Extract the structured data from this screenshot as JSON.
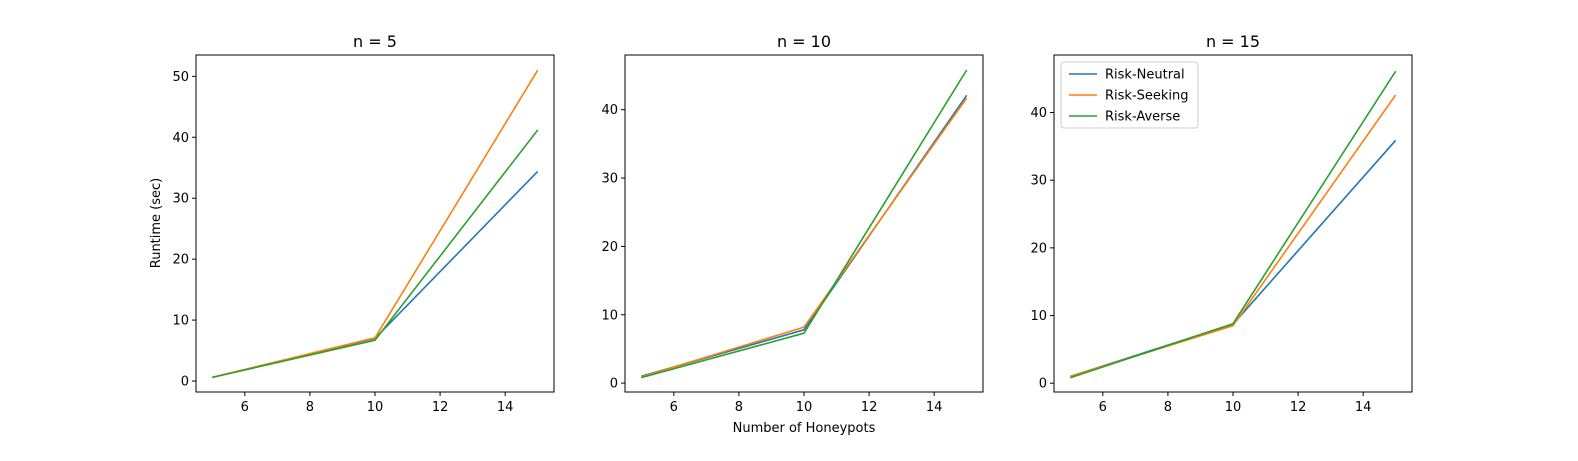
{
  "figure": {
    "xlabel": "Number of Honeypots",
    "ylabel": "Runtime (sec)"
  },
  "legend": {
    "placement": "upper-left of third panel",
    "entries": [
      "Risk-Neutral",
      "Risk-Seeking",
      "Risk-Averse"
    ]
  },
  "colors": {
    "Risk-Neutral": "#1f77b4",
    "Risk-Seeking": "#ff7f0e",
    "Risk-Averse": "#2ca02c"
  },
  "chart_data": [
    {
      "type": "line",
      "title": "n = 5",
      "x": [
        5,
        10,
        15
      ],
      "xlim": [
        4.5,
        15.5
      ],
      "ylim": [
        -1.8,
        53.5
      ],
      "xticks": [
        6,
        8,
        10,
        12,
        14
      ],
      "yticks": [
        0,
        10,
        20,
        30,
        40,
        50
      ],
      "series": [
        {
          "name": "Risk-Neutral",
          "values": [
            0.6,
            7.0,
            34.4
          ]
        },
        {
          "name": "Risk-Seeking",
          "values": [
            0.6,
            7.1,
            51.0
          ]
        },
        {
          "name": "Risk-Averse",
          "values": [
            0.6,
            6.7,
            41.2
          ]
        }
      ]
    },
    {
      "type": "line",
      "title": "n = 10",
      "x": [
        5,
        10,
        15
      ],
      "xlim": [
        4.5,
        15.5
      ],
      "ylim": [
        -1.3,
        48.0
      ],
      "xticks": [
        6,
        8,
        10,
        12,
        14
      ],
      "yticks": [
        0,
        10,
        20,
        30,
        40
      ],
      "series": [
        {
          "name": "Risk-Neutral",
          "values": [
            1.0,
            7.8,
            42.1
          ]
        },
        {
          "name": "Risk-Seeking",
          "values": [
            0.9,
            8.2,
            41.7
          ]
        },
        {
          "name": "Risk-Averse",
          "values": [
            0.8,
            7.3,
            45.8
          ]
        }
      ]
    },
    {
      "type": "line",
      "title": "n = 15",
      "x": [
        5,
        10,
        15
      ],
      "xlim": [
        4.5,
        15.5
      ],
      "ylim": [
        -1.3,
        48.5
      ],
      "xticks": [
        6,
        8,
        10,
        12,
        14
      ],
      "yticks": [
        0,
        10,
        20,
        30,
        40
      ],
      "series": [
        {
          "name": "Risk-Neutral",
          "values": [
            1.0,
            8.7,
            35.9
          ]
        },
        {
          "name": "Risk-Seeking",
          "values": [
            1.0,
            8.5,
            42.6
          ]
        },
        {
          "name": "Risk-Averse",
          "values": [
            0.8,
            8.8,
            46.1
          ]
        }
      ]
    }
  ]
}
